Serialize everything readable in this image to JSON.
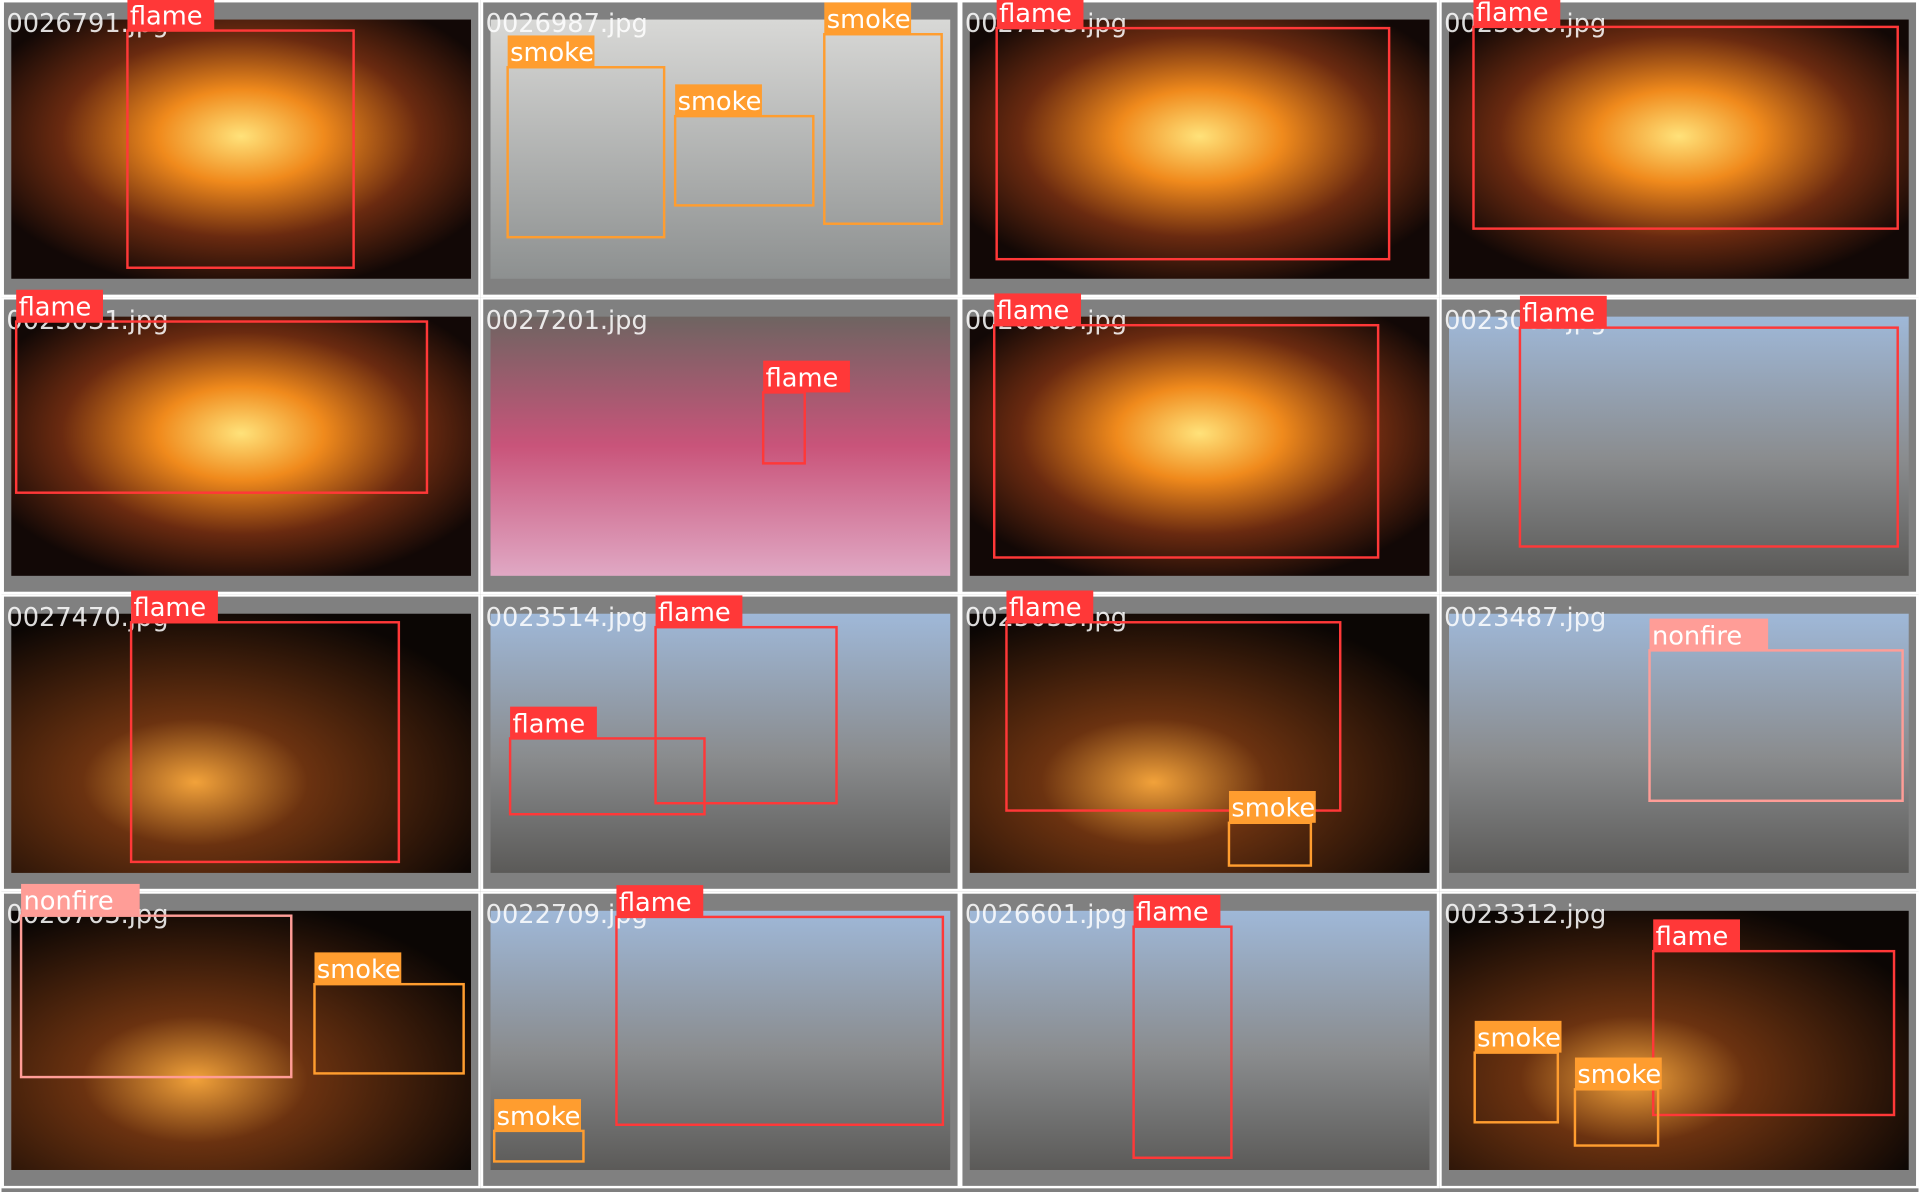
{
  "tiles": [
    {
      "filename": "0026791.jpg",
      "detections": [
        "flame"
      ]
    },
    {
      "filename": "0026987.jpg",
      "detections": [
        "smoke",
        "smoke",
        "smoke"
      ]
    },
    {
      "filename": "0027263.jpg",
      "detections": [
        "flame"
      ]
    },
    {
      "filename": "0023680.jpg",
      "detections": [
        "flame"
      ]
    },
    {
      "filename": "0025031.jpg",
      "detections": [
        "flame"
      ]
    },
    {
      "filename": "0027201.jpg",
      "detections": [
        "flame"
      ]
    },
    {
      "filename": "0026005.jpg",
      "detections": [
        "flame"
      ]
    },
    {
      "filename": "0023005.jpg",
      "detections": [
        "flame"
      ]
    },
    {
      "filename": "0027470.jpg",
      "detections": [
        "flame"
      ]
    },
    {
      "filename": "0023514.jpg",
      "detections": [
        "flame",
        "flame"
      ]
    },
    {
      "filename": "0025033.jpg",
      "detections": [
        "flame",
        "smoke"
      ]
    },
    {
      "filename": "0023487.jpg",
      "detections": [
        "nonfire"
      ]
    },
    {
      "filename": "0026703.jpg",
      "detections": [
        "nonfire",
        "smoke"
      ]
    },
    {
      "filename": "0022709.jpg",
      "detections": [
        "flame",
        "smoke"
      ]
    },
    {
      "filename": "0026601.jpg",
      "detections": [
        "flame"
      ]
    },
    {
      "filename": "0023312.jpg",
      "detections": [
        "flame",
        "smoke",
        "smoke"
      ]
    }
  ]
}
